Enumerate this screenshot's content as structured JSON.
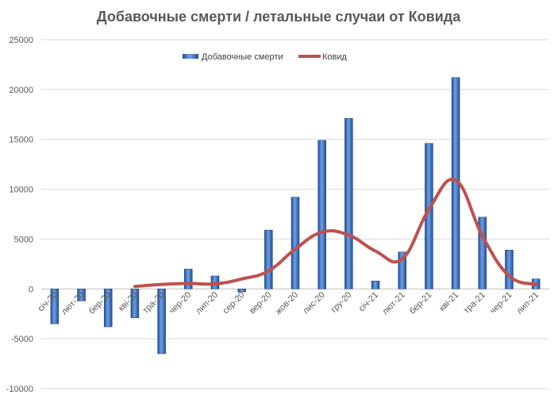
{
  "chart_data": {
    "type": "bar",
    "title": "Добавочные смерти / летальные случаи от Ковида",
    "categories": [
      "січ-20",
      "лют-20",
      "бер-20",
      "кві-20",
      "тра-20",
      "чер-20",
      "лип-20",
      "сер-20",
      "вер-20",
      "жов-20",
      "лис-20",
      "гру-20",
      "січ-21",
      "лют-21",
      "бер-21",
      "кві-21",
      "тра-21",
      "чер-21",
      "лип-21"
    ],
    "ylim": [
      -10000,
      25000
    ],
    "yticks": [
      "-10000",
      "-5000",
      "0",
      "5000",
      "10000",
      "15000",
      "20000",
      "25000"
    ],
    "grid": true,
    "legend_position": "top-center",
    "series": [
      {
        "name": "Добавочные смерти",
        "type": "bar",
        "color": "#2f62b4",
        "values": [
          -3500,
          -1200,
          -3800,
          -2900,
          -6500,
          2000,
          1300,
          -300,
          5900,
          9200,
          14900,
          17100,
          800,
          3700,
          14600,
          21200,
          7200,
          3900,
          1000
        ]
      },
      {
        "name": "Ковид",
        "type": "line",
        "color": "#c0504d",
        "values": [
          null,
          null,
          null,
          250,
          450,
          550,
          500,
          1000,
          1800,
          4000,
          5700,
          5400,
          3800,
          3000,
          8000,
          10900,
          5300,
          1300,
          450
        ]
      }
    ]
  }
}
